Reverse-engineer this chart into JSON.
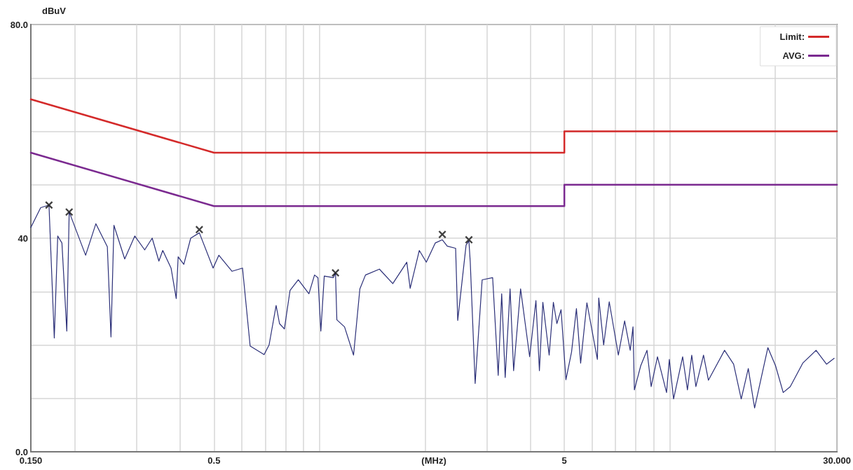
{
  "chart_data": {
    "type": "line",
    "xlabel": "(MHz)",
    "ylabel": "dBuV",
    "log": "x",
    "grid": true,
    "legend": "top right",
    "xlim": [
      0.15,
      30
    ],
    "ylim": [
      0,
      80
    ],
    "xticks": [
      {
        "value": 0.15,
        "label": "0.150"
      },
      {
        "value": 0.2,
        "label": null
      },
      {
        "value": 0.3,
        "label": null
      },
      {
        "value": 0.4,
        "label": null
      },
      0.5,
      {
        "value": 0.6,
        "label": null
      },
      {
        "value": 0.7,
        "label": null
      },
      {
        "value": 0.8,
        "label": null
      },
      {
        "value": 0.9,
        "label": null
      },
      {
        "value": 1,
        "label": null
      },
      {
        "value": 2,
        "label": null
      },
      {
        "value": 3,
        "label": null
      },
      {
        "value": 4,
        "label": null
      },
      5,
      {
        "value": 6,
        "label": null
      },
      {
        "value": 7,
        "label": null
      },
      {
        "value": 8,
        "label": null
      },
      {
        "value": 9,
        "label": null
      },
      {
        "value": 10,
        "label": null
      },
      {
        "value": 20,
        "label": null
      },
      {
        "value": 30,
        "label": "30.000"
      }
    ],
    "yticks": [
      {
        "value": 0,
        "label": "0.0"
      },
      {
        "value": 10,
        "label": null
      },
      {
        "value": 20,
        "label": null
      },
      {
        "value": 30,
        "label": null
      },
      40,
      {
        "value": 50,
        "label": null
      },
      {
        "value": 60,
        "label": null
      },
      {
        "value": 70,
        "label": null
      },
      {
        "value": 80,
        "label": "80.0"
      }
    ],
    "series": [
      {
        "name": "Limit:",
        "color": "#d42a2a",
        "x": [
          0.15,
          0.5,
          5,
          5,
          30
        ],
        "values": [
          66,
          56,
          56,
          60,
          60
        ]
      },
      {
        "name": "AVG:",
        "color": "#7b2a90",
        "x": [
          0.15,
          0.5,
          5,
          5,
          30
        ],
        "values": [
          56,
          46,
          46,
          50,
          50
        ]
      },
      {
        "color": "#2b2f78",
        "x": [
          0.15,
          0.16,
          0.169,
          0.175,
          0.179,
          0.184,
          0.19,
          0.193,
          0.215,
          0.23,
          0.248,
          0.254,
          0.259,
          0.278,
          0.297,
          0.317,
          0.333,
          0.348,
          0.357,
          0.377,
          0.39,
          0.395,
          0.41,
          0.429,
          0.454,
          0.497,
          0.516,
          0.563,
          0.603,
          0.634,
          0.695,
          0.718,
          0.752,
          0.769,
          0.794,
          0.824,
          0.87,
          0.933,
          0.968,
          0.99,
          1.009,
          1.032,
          1.095,
          1.111,
          1.121,
          1.179,
          1.251,
          1.304,
          1.353,
          1.483,
          1.619,
          1.775,
          1.815,
          1.927,
          2.018,
          2.141,
          2.242,
          2.316,
          2.447,
          2.481,
          2.621,
          2.67,
          2.694,
          2.782,
          2.913,
          3.121,
          3.237,
          3.312,
          3.389,
          3.5,
          3.582,
          3.75,
          3.98,
          4.148,
          4.244,
          4.341,
          4.525,
          4.652,
          4.76,
          4.893,
          5.052,
          5.243,
          5.413,
          5.565,
          5.799,
          6.212,
          6.269,
          6.474,
          6.716,
          7.13,
          7.431,
          7.709,
          7.851,
          7.923,
          8.259,
          8.607,
          8.847,
          9.221,
          9.788,
          9.969,
          10.25,
          10.88,
          11.23,
          11.55,
          11.87,
          12.48,
          12.89,
          14.33,
          15.21,
          15.99,
          16.75,
          17.46,
          19.05,
          20.04,
          21.07,
          22.07,
          23.96,
          26.15,
          28.01,
          29.46
        ],
        "values": [
          42.0,
          45.7,
          46.2,
          21.3,
          40.4,
          39.1,
          22.6,
          44.9,
          36.8,
          42.7,
          38.4,
          21.5,
          42.4,
          36.1,
          40.4,
          37.8,
          40.0,
          35.7,
          37.7,
          34.4,
          28.7,
          36.5,
          35.1,
          40.0,
          41.0,
          34.4,
          36.8,
          33.8,
          34.4,
          19.8,
          18.2,
          20.0,
          27.4,
          24.0,
          23.0,
          30.2,
          32.2,
          29.6,
          33.1,
          32.6,
          22.6,
          32.9,
          32.6,
          33.5,
          24.7,
          23.4,
          18.1,
          30.5,
          33.1,
          34.2,
          31.5,
          35.5,
          30.6,
          37.7,
          35.5,
          39.1,
          39.7,
          38.5,
          38.1,
          24.6,
          38.7,
          39.5,
          35.5,
          12.8,
          32.2,
          32.6,
          14.3,
          29.6,
          13.9,
          30.5,
          15.2,
          30.5,
          17.8,
          28.3,
          15.2,
          28.0,
          18.1,
          28.0,
          24.0,
          26.6,
          13.5,
          18.7,
          26.8,
          16.6,
          27.9,
          17.3,
          28.8,
          20.0,
          28.1,
          18.1,
          24.5,
          19.0,
          23.4,
          11.6,
          16.1,
          19.0,
          12.2,
          17.8,
          11.1,
          17.3,
          9.9,
          17.8,
          11.6,
          18.1,
          12.2,
          18.1,
          13.4,
          19.0,
          16.4,
          9.9,
          15.6,
          8.2,
          19.5,
          16.1,
          11.1,
          12.2,
          16.6,
          19.0,
          16.4,
          17.5
        ]
      },
      {
        "type": "scatter",
        "marker": "cross",
        "color": "#111111",
        "x": [
          0.169,
          0.193,
          0.454,
          1.111,
          2.242,
          2.67
        ],
        "values": [
          46.2,
          44.9,
          41.6,
          33.5,
          40.7,
          39.7
        ]
      }
    ]
  }
}
